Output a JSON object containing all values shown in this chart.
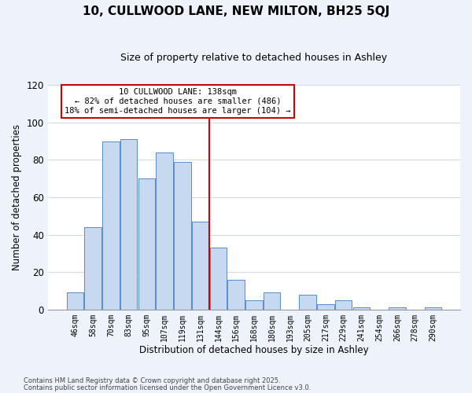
{
  "title": "10, CULLWOOD LANE, NEW MILTON, BH25 5QJ",
  "subtitle": "Size of property relative to detached houses in Ashley",
  "xlabel": "Distribution of detached houses by size in Ashley",
  "ylabel": "Number of detached properties",
  "bar_color": "#c6d9f0",
  "bar_edge_color": "#5b8ac9",
  "bin_labels": [
    "46sqm",
    "58sqm",
    "70sqm",
    "83sqm",
    "95sqm",
    "107sqm",
    "119sqm",
    "131sqm",
    "144sqm",
    "156sqm",
    "168sqm",
    "180sqm",
    "193sqm",
    "205sqm",
    "217sqm",
    "229sqm",
    "241sqm",
    "254sqm",
    "266sqm",
    "278sqm",
    "290sqm"
  ],
  "bar_heights": [
    9,
    44,
    90,
    91,
    70,
    84,
    79,
    47,
    33,
    16,
    5,
    9,
    0,
    8,
    3,
    5,
    1,
    0,
    1,
    0,
    1
  ],
  "vline_x": 7.5,
  "vline_color": "#cc0000",
  "ylim": [
    0,
    120
  ],
  "yticks": [
    0,
    20,
    40,
    60,
    80,
    100,
    120
  ],
  "annotation_title": "10 CULLWOOD LANE: 138sqm",
  "annotation_line1": "← 82% of detached houses are smaller (486)",
  "annotation_line2": "18% of semi-detached houses are larger (104) →",
  "footnote1": "Contains HM Land Registry data © Crown copyright and database right 2025.",
  "footnote2": "Contains public sector information licensed under the Open Government Licence v3.0.",
  "bg_color": "#eef2fb",
  "plot_bg_color": "#ffffff"
}
